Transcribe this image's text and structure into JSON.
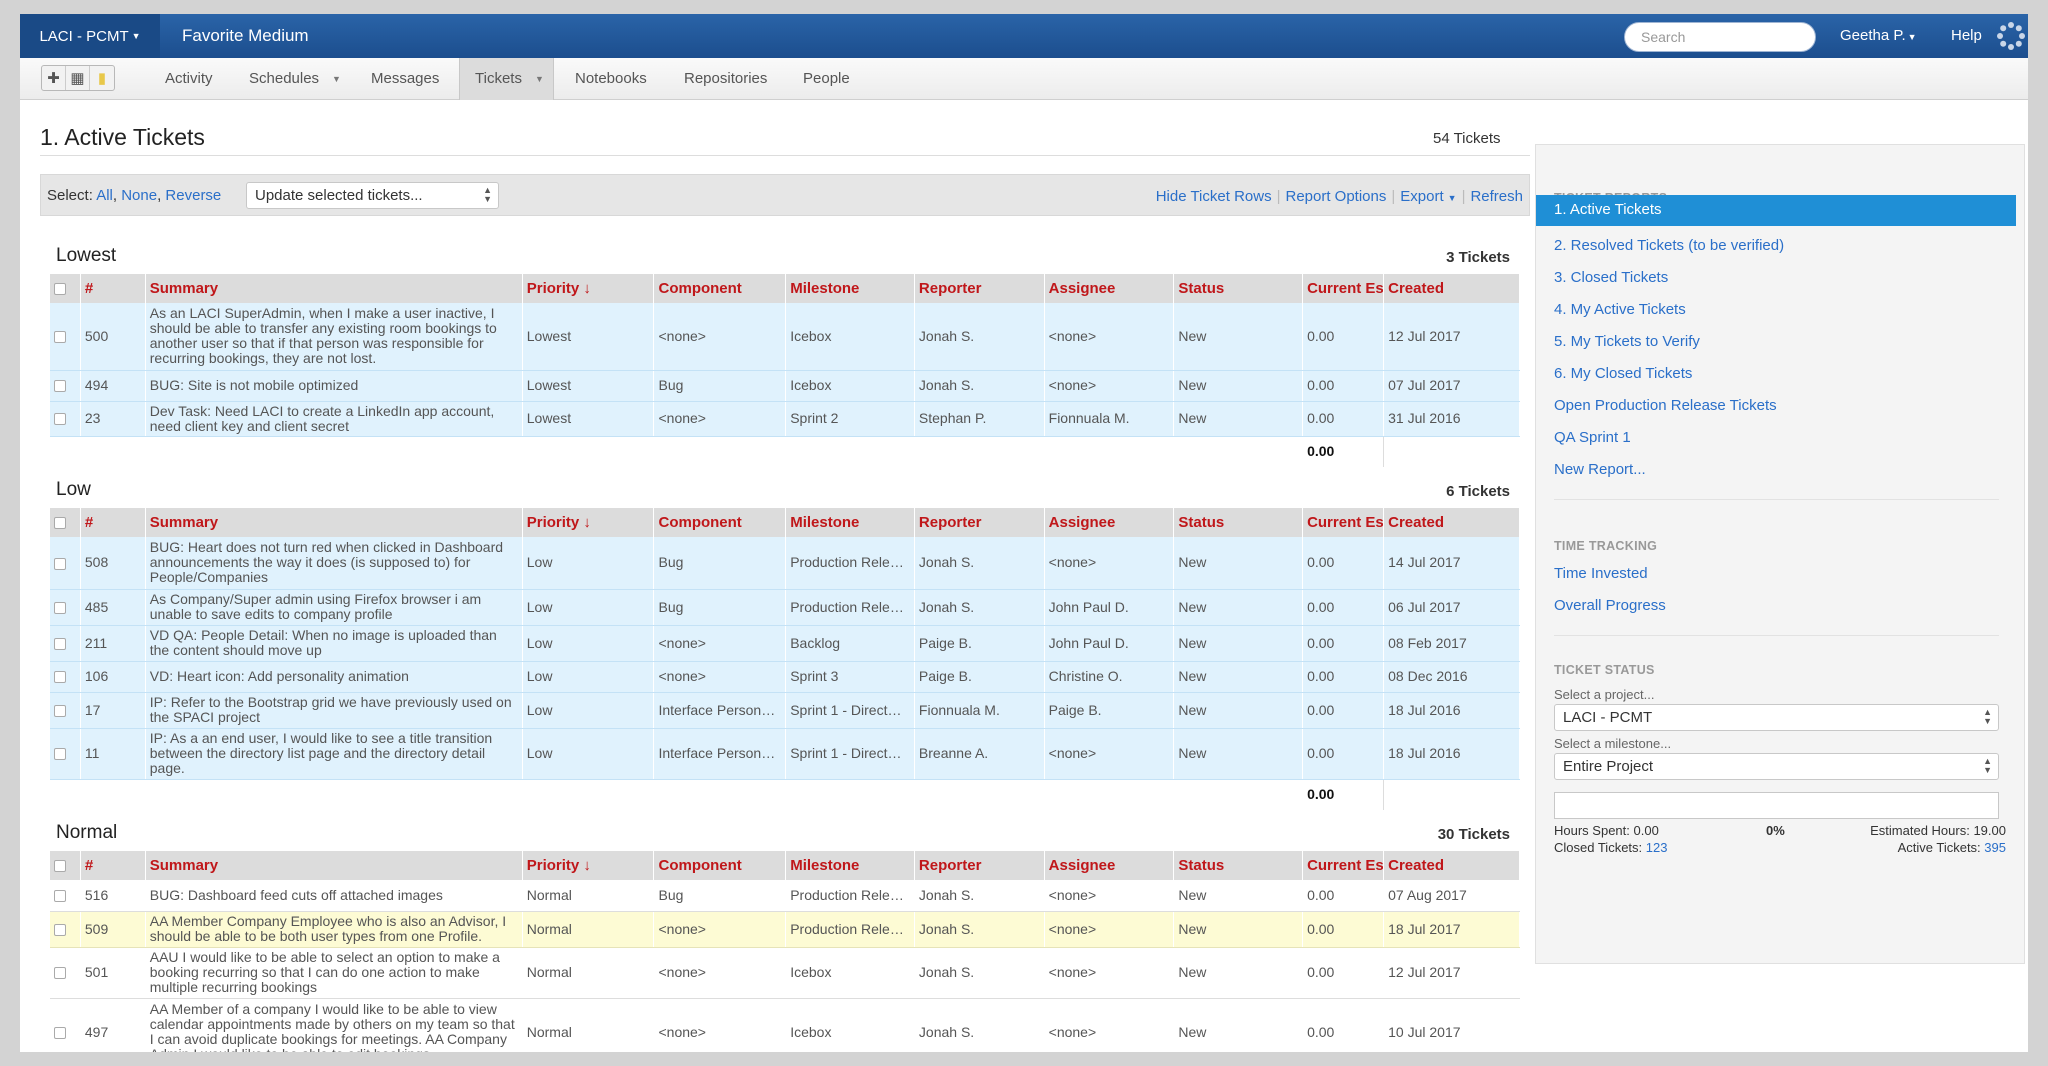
{
  "topbar": {
    "project_switch": "LACI - PCMT",
    "project_name": "Favorite Medium",
    "search_placeholder": "Search",
    "user": "Geetha P.",
    "help": "Help"
  },
  "nav": {
    "tabs": [
      "Activity",
      "Schedules",
      "Messages",
      "Tickets",
      "Notebooks",
      "Repositories",
      "People"
    ],
    "active": "Tickets"
  },
  "main": {
    "title": "1. Active Tickets",
    "total": "54 Tickets",
    "select_label": "Select:",
    "select_all": "All",
    "select_none": "None",
    "select_reverse": "Reverse",
    "bulk_update": "Update selected tickets...",
    "actions": {
      "hide_rows": "Hide Ticket Rows",
      "report_options": "Report Options",
      "export": "Export",
      "refresh": "Refresh"
    },
    "columns": {
      "num": "#",
      "summary": "Summary",
      "priority": "Priority ↓",
      "component": "Component",
      "milestone": "Milestone",
      "reporter": "Reporter",
      "assignee": "Assignee",
      "status": "Status",
      "estimate": "Current Es",
      "created": "Created"
    },
    "groups": [
      {
        "name": "Lowest",
        "count": "3 Tickets",
        "total_estimate": "0.00",
        "rows": [
          {
            "num": "500",
            "summary": "As an LACI SuperAdmin, when I make a user inactive, I should be able to transfer any existing room bookings to another user so that if that person was responsible for recurring bookings, they are not lost.",
            "priority": "Lowest",
            "component": "<none>",
            "milestone": "Icebox",
            "reporter": "Jonah S.",
            "assignee": "<none>",
            "status": "New",
            "estimate": "0.00",
            "created": "12 Jul 2017"
          },
          {
            "num": "494",
            "summary": "BUG: Site is not mobile optimized",
            "priority": "Lowest",
            "component": "Bug",
            "milestone": "Icebox",
            "reporter": "Jonah S.",
            "assignee": "<none>",
            "status": "New",
            "estimate": "0.00",
            "created": "07 Jul 2017"
          },
          {
            "num": "23",
            "summary": "Dev Task: Need LACI to create a LinkedIn app account, need client key and client secret",
            "priority": "Lowest",
            "component": "<none>",
            "milestone": "Sprint 2",
            "reporter": "Stephan P.",
            "assignee": "Fionnuala M.",
            "status": "New",
            "estimate": "0.00",
            "created": "31 Jul 2016"
          }
        ]
      },
      {
        "name": "Low",
        "count": "6 Tickets",
        "total_estimate": "0.00",
        "rows": [
          {
            "num": "508",
            "summary": "BUG: Heart does not turn red when clicked in Dashboard announcements the way it does (is supposed to) for People/Companies",
            "priority": "Low",
            "component": "Bug",
            "milestone": "Production Rele…",
            "reporter": "Jonah S.",
            "assignee": "<none>",
            "status": "New",
            "estimate": "0.00",
            "created": "14 Jul 2017"
          },
          {
            "num": "485",
            "summary": "As Company/Super admin using Firefox browser i am unable to save edits to company profile",
            "priority": "Low",
            "component": "Bug",
            "milestone": "Production Rele…",
            "reporter": "Jonah S.",
            "assignee": "John Paul D.",
            "status": "New",
            "estimate": "0.00",
            "created": "06 Jul 2017"
          },
          {
            "num": "211",
            "summary": "VD QA: People Detail: When no image is uploaded than the content should move up",
            "priority": "Low",
            "component": "<none>",
            "milestone": "Backlog",
            "reporter": "Paige B.",
            "assignee": "John Paul D.",
            "status": "New",
            "estimate": "0.00",
            "created": "08 Feb 2017"
          },
          {
            "num": "106",
            "summary": "VD: Heart icon: Add personality animation",
            "priority": "Low",
            "component": "<none>",
            "milestone": "Sprint 3",
            "reporter": "Paige B.",
            "assignee": "Christine O.",
            "status": "New",
            "estimate": "0.00",
            "created": "08 Dec 2016"
          },
          {
            "num": "17",
            "summary": "IP: Refer to the Bootstrap grid we have previously used on the SPACI project",
            "priority": "Low",
            "component": "Interface Person…",
            "milestone": "Sprint 1 - Direct…",
            "reporter": "Fionnuala M.",
            "assignee": "Paige B.",
            "status": "New",
            "estimate": "0.00",
            "created": "18 Jul 2016"
          },
          {
            "num": "11",
            "summary": "IP: As a an end user, I would like to see a title transition between the directory list page and the directory detail page.",
            "priority": "Low",
            "component": "Interface Person…",
            "milestone": "Sprint 1 - Direct…",
            "reporter": "Breanne A.",
            "assignee": "<none>",
            "status": "New",
            "estimate": "0.00",
            "created": "18 Jul 2016"
          }
        ]
      },
      {
        "name": "Normal",
        "count": "30 Tickets",
        "rows": [
          {
            "num": "516",
            "summary": "BUG: Dashboard feed cuts off attached images",
            "priority": "Normal",
            "component": "Bug",
            "milestone": "Production Rele…",
            "reporter": "Jonah S.",
            "assignee": "<none>",
            "status": "New",
            "estimate": "0.00",
            "created": "07 Aug 2017"
          },
          {
            "num": "509",
            "summary": "AA Member Company Employee who is also an Advisor, I should be able to be both user types from one Profile.",
            "priority": "Normal",
            "component": "<none>",
            "milestone": "Production Rele…",
            "reporter": "Jonah S.",
            "assignee": "<none>",
            "status": "New",
            "estimate": "0.00",
            "created": "18 Jul 2017"
          },
          {
            "num": "501",
            "summary": "AAU I would like to be able to select an option to make a booking recurring so that I can do one action to make multiple recurring bookings",
            "priority": "Normal",
            "component": "<none>",
            "milestone": "Icebox",
            "reporter": "Jonah S.",
            "assignee": "<none>",
            "status": "New",
            "estimate": "0.00",
            "created": "12 Jul 2017"
          },
          {
            "num": "497",
            "summary": "AA Member of a company I would like to be able to view calendar appointments made by others on my team so that I can avoid duplicate bookings for meetings. AA Company Admin I would like to be able to edit bookings",
            "priority": "Normal",
            "component": "<none>",
            "milestone": "Icebox",
            "reporter": "Jonah S.",
            "assignee": "<none>",
            "status": "New",
            "estimate": "0.00",
            "created": "10 Jul 2017"
          }
        ]
      }
    ]
  },
  "sidebar": {
    "reports_heading": "TICKET REPORTS",
    "reports": [
      "1. Active Tickets",
      "2. Resolved Tickets (to be verified)",
      "3. Closed Tickets",
      "4. My Active Tickets",
      "5. My Tickets to Verify",
      "6. My Closed Tickets",
      "Open Production Release Tickets",
      "QA Sprint 1",
      "New Report..."
    ],
    "time_heading": "TIME TRACKING",
    "time_links": [
      "Time Invested",
      "Overall Progress"
    ],
    "status_heading": "TICKET STATUS",
    "select_project_label": "Select a project...",
    "project_value": "LACI - PCMT",
    "select_milestone_label": "Select a milestone...",
    "milestone_value": "Entire Project",
    "progress_fraction": 0,
    "hours_spent_label": "Hours Spent:",
    "hours_spent": "0.00",
    "percent": "0%",
    "estimated_hours_label": "Estimated Hours:",
    "estimated_hours": "19.00",
    "closed_label": "Closed Tickets:",
    "closed_count": "123",
    "active_label": "Active Tickets:",
    "active_count": "395"
  },
  "colors": {
    "topbar": "#1c4e8e",
    "accent": "#1f8fd6",
    "link": "#2a6fc9",
    "header_text": "#c0171a",
    "row_blue": "#e0f2fd",
    "row_highlight": "#fdfbd4"
  },
  "icons": [
    "add-icon",
    "grid-icon",
    "note-icon",
    "settings-gear-icon"
  ]
}
